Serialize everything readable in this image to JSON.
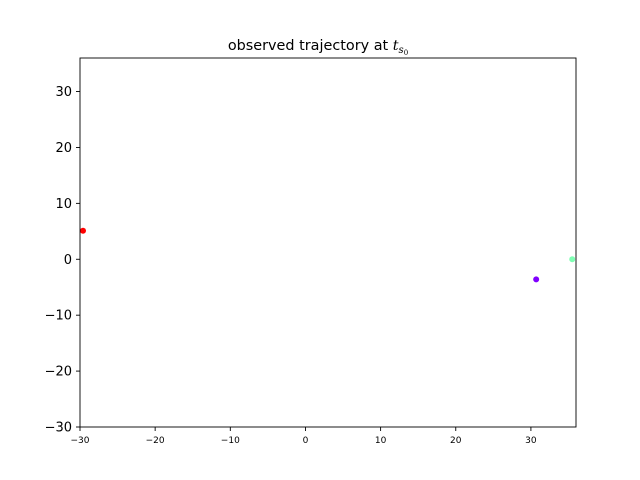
{
  "chart_data": {
    "type": "scatter",
    "title": {
      "main": "observed trajectory at ",
      "var": "t",
      "sub": "s",
      "subsub": "0"
    },
    "xlabel": "",
    "ylabel": "",
    "xlim": [
      -30,
      36
    ],
    "ylim": [
      -30,
      36
    ],
    "xticks": [
      -30,
      -20,
      -10,
      0,
      10,
      20,
      30
    ],
    "yticks": [
      -30,
      -20,
      -10,
      0,
      10,
      20,
      30
    ],
    "xtick_labels": [
      "−30",
      "−20",
      "−10",
      "0",
      "10",
      "20",
      "30"
    ],
    "ytick_labels": [
      "−30",
      "−20",
      "−10",
      "0",
      "10",
      "20",
      "30"
    ],
    "grid": false,
    "points": [
      {
        "x": -29.6,
        "y": 5.1,
        "color": "#ff0000"
      },
      {
        "x": 30.7,
        "y": -3.6,
        "color": "#8000ff"
      },
      {
        "x": 35.5,
        "y": 0.0,
        "color": "#80ffb4"
      }
    ]
  }
}
